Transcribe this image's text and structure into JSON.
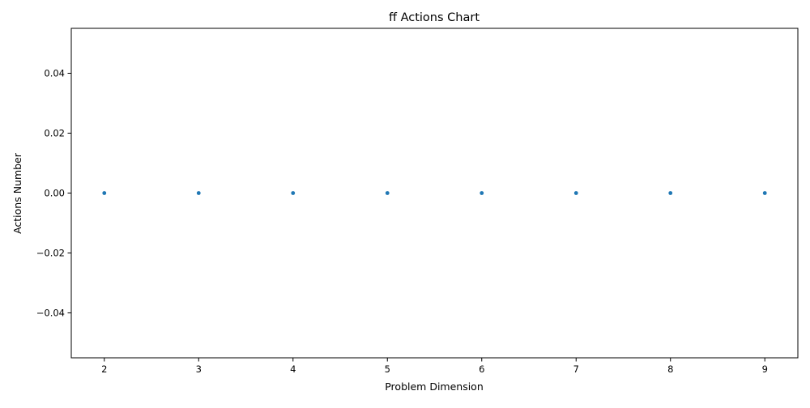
{
  "chart_data": {
    "type": "scatter",
    "title": "ff Actions Chart",
    "xlabel": "Problem Dimension",
    "ylabel": "Actions Number",
    "x": [
      2,
      3,
      4,
      5,
      6,
      7,
      8,
      9
    ],
    "y": [
      0,
      0,
      0,
      0,
      0,
      0,
      0,
      0
    ],
    "xlim": [
      1.65,
      9.35
    ],
    "ylim": [
      -0.055,
      0.055
    ],
    "xticks": [
      2,
      3,
      4,
      5,
      6,
      7,
      8,
      9
    ],
    "xtick_labels": [
      "2",
      "3",
      "4",
      "5",
      "6",
      "7",
      "8",
      "9"
    ],
    "yticks": [
      -0.04,
      -0.02,
      0.0,
      0.02,
      0.04
    ],
    "ytick_labels": [
      "−0.04",
      "−0.02",
      "0.00",
      "0.02",
      "0.04"
    ],
    "grid": false,
    "legend": false,
    "marker_color": "#1f77b4"
  }
}
